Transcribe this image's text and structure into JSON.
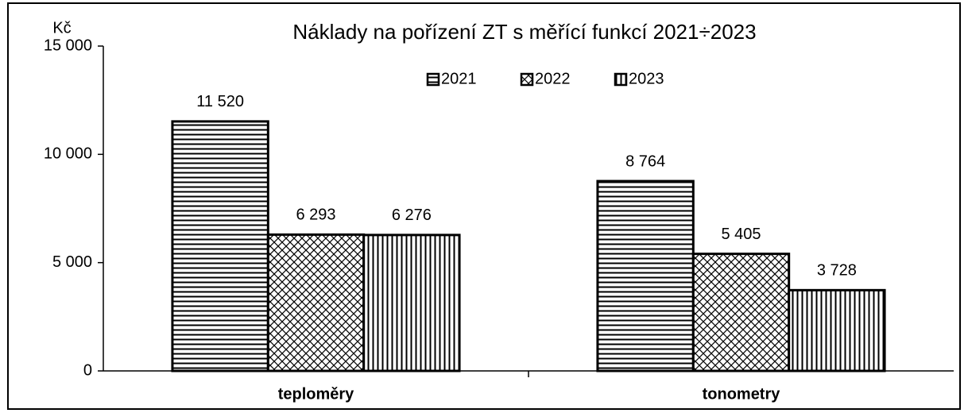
{
  "chart_data": {
    "type": "bar",
    "title": "Náklady na pořízení ZT s měřící funkcí 2021÷2023",
    "y_label": "Kč",
    "categories": [
      "teploměry",
      "tonometry"
    ],
    "series": [
      {
        "name": "2021",
        "color": "#000000",
        "pattern": "horizontal",
        "values": [
          11520,
          8764
        ],
        "value_labels": [
          "11 520",
          "8 764"
        ]
      },
      {
        "name": "2022",
        "color": "#000000",
        "pattern": "crosshatch",
        "values": [
          6293,
          5405
        ],
        "value_labels": [
          "6 293",
          "5 405"
        ]
      },
      {
        "name": "2023",
        "color": "#000000",
        "pattern": "vertical",
        "values": [
          6276,
          3728
        ],
        "value_labels": [
          "6 276",
          "3 728"
        ]
      }
    ],
    "ylim": [
      0,
      15000
    ],
    "yticks": [
      0,
      {
        "value": 5000,
        "label": "5 000"
      },
      {
        "value": 10000,
        "label": "10 000"
      },
      {
        "value": 15000,
        "label": "15 000"
      }
    ],
    "grid": false,
    "legend": "top"
  }
}
